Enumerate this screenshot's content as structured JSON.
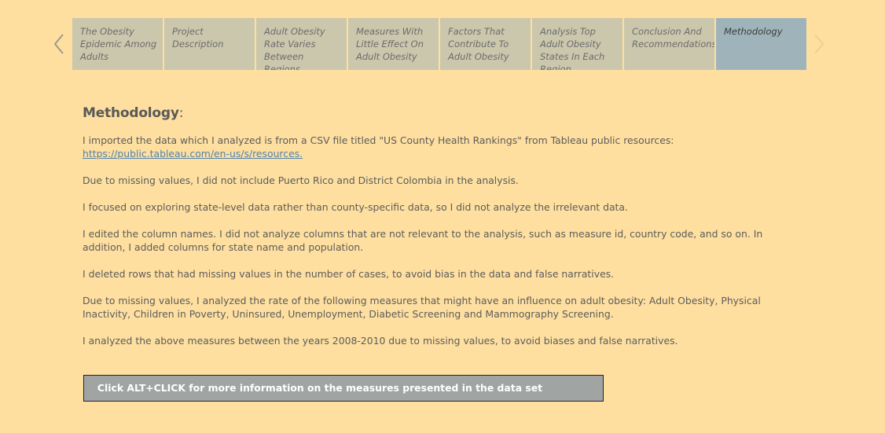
{
  "nav": {
    "prev_icon": "chevron-left-icon",
    "next_icon": "chevron-right-icon",
    "arrow_color": "#9b9b8f",
    "arrow_disabled_color": "#f0cf8f"
  },
  "story_points": [
    {
      "label": "The Obesity Epidemic Among Adults",
      "active": false
    },
    {
      "label": "Project Description",
      "active": false
    },
    {
      "label": "Adult Obesity Rate Varies Between Regions",
      "active": false
    },
    {
      "label": "Measures With Little Effect On Adult Obesity",
      "active": false
    },
    {
      "label": "Factors That Contribute To Adult Obesity",
      "active": false
    },
    {
      "label": "Analysis Top Adult Obesity States In Each Region",
      "active": false
    },
    {
      "label": "Conclusion And Recommendations",
      "active": false
    },
    {
      "label": "Methodology",
      "active": true
    }
  ],
  "content": {
    "heading": "Methodology",
    "heading_colon": ":",
    "paragraph_1": "I imported the data which I analyzed is from a CSV file titled \"US County Health Rankings\" from Tableau public resources:",
    "link": "https://public.tableau.com/en-us/s/resources.",
    "paragraph_2": "Due to missing values, I did not include Puerto Rico and District Colombia in the analysis.",
    "paragraph_3": "I focused on exploring state-level data rather than county-specific data, so I did not analyze the irrelevant data.",
    "paragraph_4": "I edited the column names. I did not analyze columns that are not relevant to the analysis, such as measure id, country code, and so on. In addition, I added columns for state name and population.",
    "paragraph_5": "I deleted rows that had missing values in the number of cases, to avoid bias in the data and false narratives.",
    "paragraph_6": "Due to missing values, I analyzed the rate of the following measures that might have an influence on adult obesity: Adult Obesity, Physical Inactivity, Children in Poverty, Uninsured, Unemployment, Diabetic Screening and Mammography Screening.",
    "paragraph_7": "I analyzed the above measures between the years 2008-2010 due to missing values, to avoid biases and false narratives."
  },
  "info_button": {
    "label": "Click ALT+CLICK for more information on the measures presented in the data set"
  },
  "colors": {
    "background": "#fedf9f",
    "tab": "#cbc7ad",
    "tab_active": "#9fb3ba",
    "button": "#a0a5a3"
  }
}
